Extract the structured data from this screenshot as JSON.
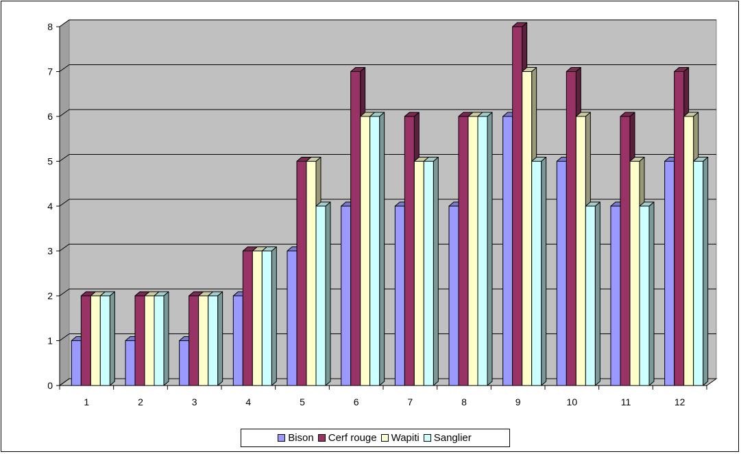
{
  "chart_data": {
    "type": "bar",
    "categories": [
      "1",
      "2",
      "3",
      "4",
      "5",
      "6",
      "7",
      "8",
      "9",
      "10",
      "11",
      "12"
    ],
    "series": [
      {
        "name": "Bison",
        "values": [
          1,
          1,
          1,
          2,
          3,
          4,
          4,
          4,
          6,
          5,
          4,
          5
        ]
      },
      {
        "name": "Cerf rouge",
        "values": [
          2,
          2,
          2,
          3,
          5,
          7,
          6,
          6,
          8,
          7,
          6,
          7
        ]
      },
      {
        "name": "Wapiti",
        "values": [
          2,
          2,
          2,
          3,
          5,
          6,
          5,
          6,
          7,
          6,
          5,
          6
        ]
      },
      {
        "name": "Sanglier",
        "values": [
          2,
          2,
          2,
          3,
          4,
          6,
          5,
          6,
          5,
          4,
          4,
          5
        ]
      }
    ],
    "colors": [
      "#9999ff",
      "#993366",
      "#ffffcc",
      "#ccffff"
    ],
    "ylim": [
      0,
      8
    ],
    "yticks": [
      "0",
      "1",
      "2",
      "3",
      "4",
      "5",
      "6",
      "7",
      "8"
    ],
    "grid": true,
    "style": "3d-clustered-column",
    "legend_position": "bottom"
  }
}
